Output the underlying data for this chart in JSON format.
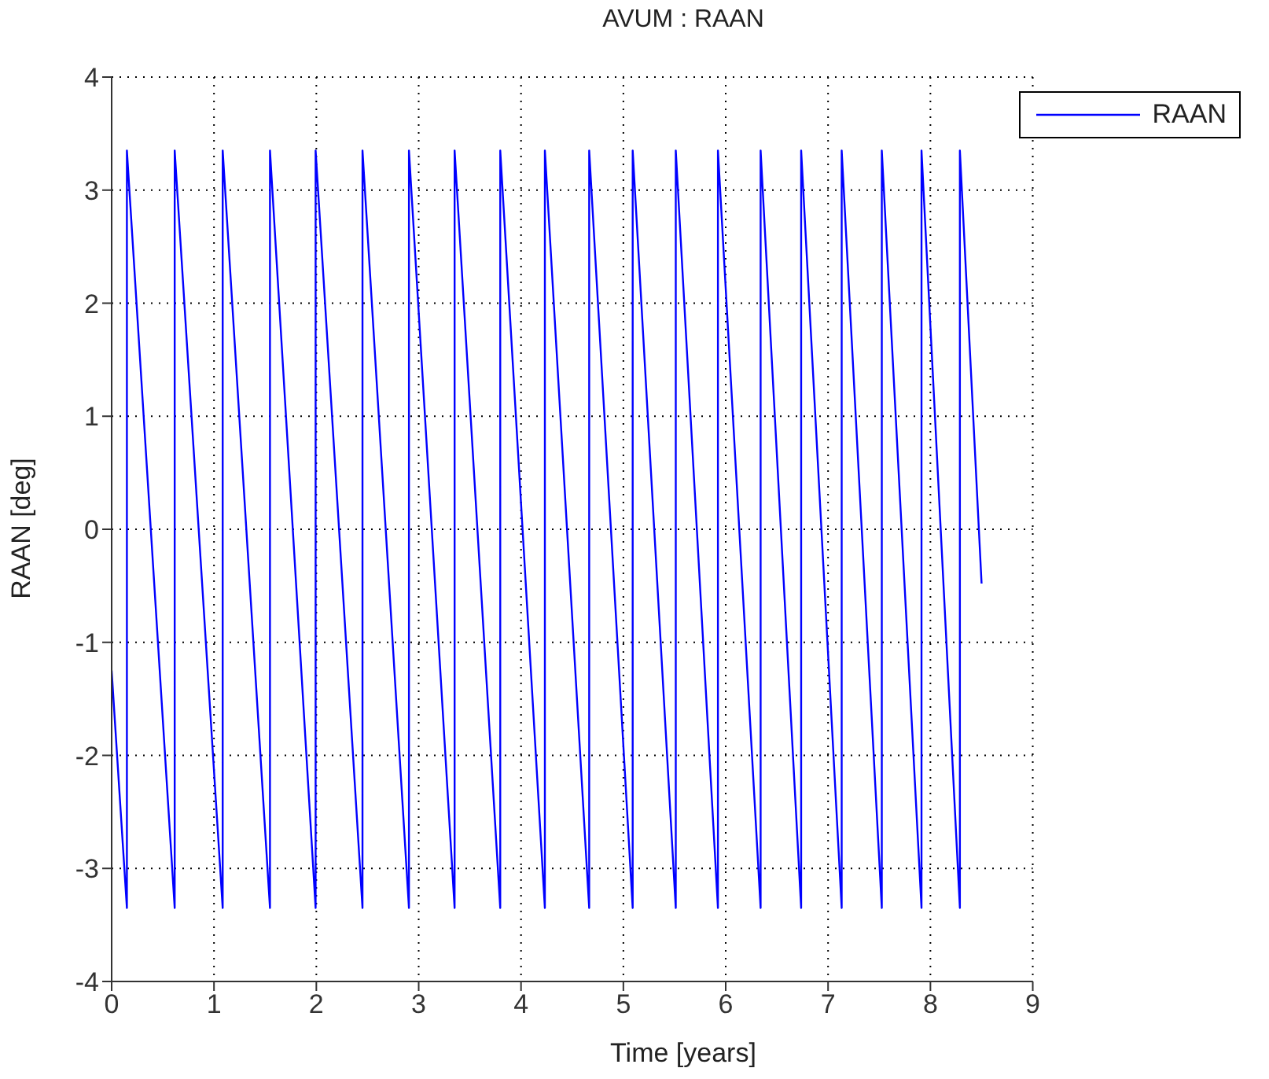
{
  "chart_data": {
    "type": "line",
    "title": "AVUM : RAAN",
    "xlabel": "Time [years]",
    "ylabel": "RAAN [deg]",
    "x": [
      0,
      0.149,
      0.149,
      0.616,
      0.616,
      1.085,
      1.085,
      1.547,
      1.547,
      1.993,
      1.993,
      2.451,
      2.451,
      2.905,
      2.905,
      3.351,
      3.351,
      3.797,
      3.797,
      4.233,
      4.233,
      4.666,
      4.666,
      5.091,
      5.091,
      5.512,
      5.512,
      5.924,
      5.924,
      6.341,
      6.341,
      6.737,
      6.737,
      7.133,
      7.133,
      7.525,
      7.525,
      7.913,
      7.913,
      8.288,
      8.288,
      8.5
    ],
    "series": [
      {
        "name": "RAAN",
        "color": "#0000ff",
        "values": [
          -1.25,
          -3.35,
          3.35,
          -3.35,
          3.35,
          -3.35,
          3.35,
          -3.35,
          3.35,
          -3.35,
          3.35,
          -3.35,
          3.35,
          -3.35,
          3.35,
          -3.35,
          3.35,
          -3.35,
          3.35,
          -3.35,
          3.35,
          -3.35,
          3.35,
          -3.35,
          3.35,
          -3.35,
          3.35,
          -3.35,
          3.35,
          -3.35,
          3.35,
          -3.35,
          3.35,
          -3.35,
          3.35,
          -3.35,
          3.35,
          -3.35,
          3.35,
          -3.35,
          3.35,
          -0.48
        ]
      }
    ],
    "xlim": [
      0,
      9
    ],
    "xticks": [
      0,
      1,
      2,
      3,
      4,
      5,
      6,
      7,
      8,
      9
    ],
    "ylim": [
      -4,
      4
    ],
    "yticks": [
      -4,
      -3,
      -2,
      -1,
      0,
      1,
      2,
      3,
      4
    ],
    "grid": true,
    "legend": "top right",
    "marker": "none",
    "line_style": "solid"
  }
}
